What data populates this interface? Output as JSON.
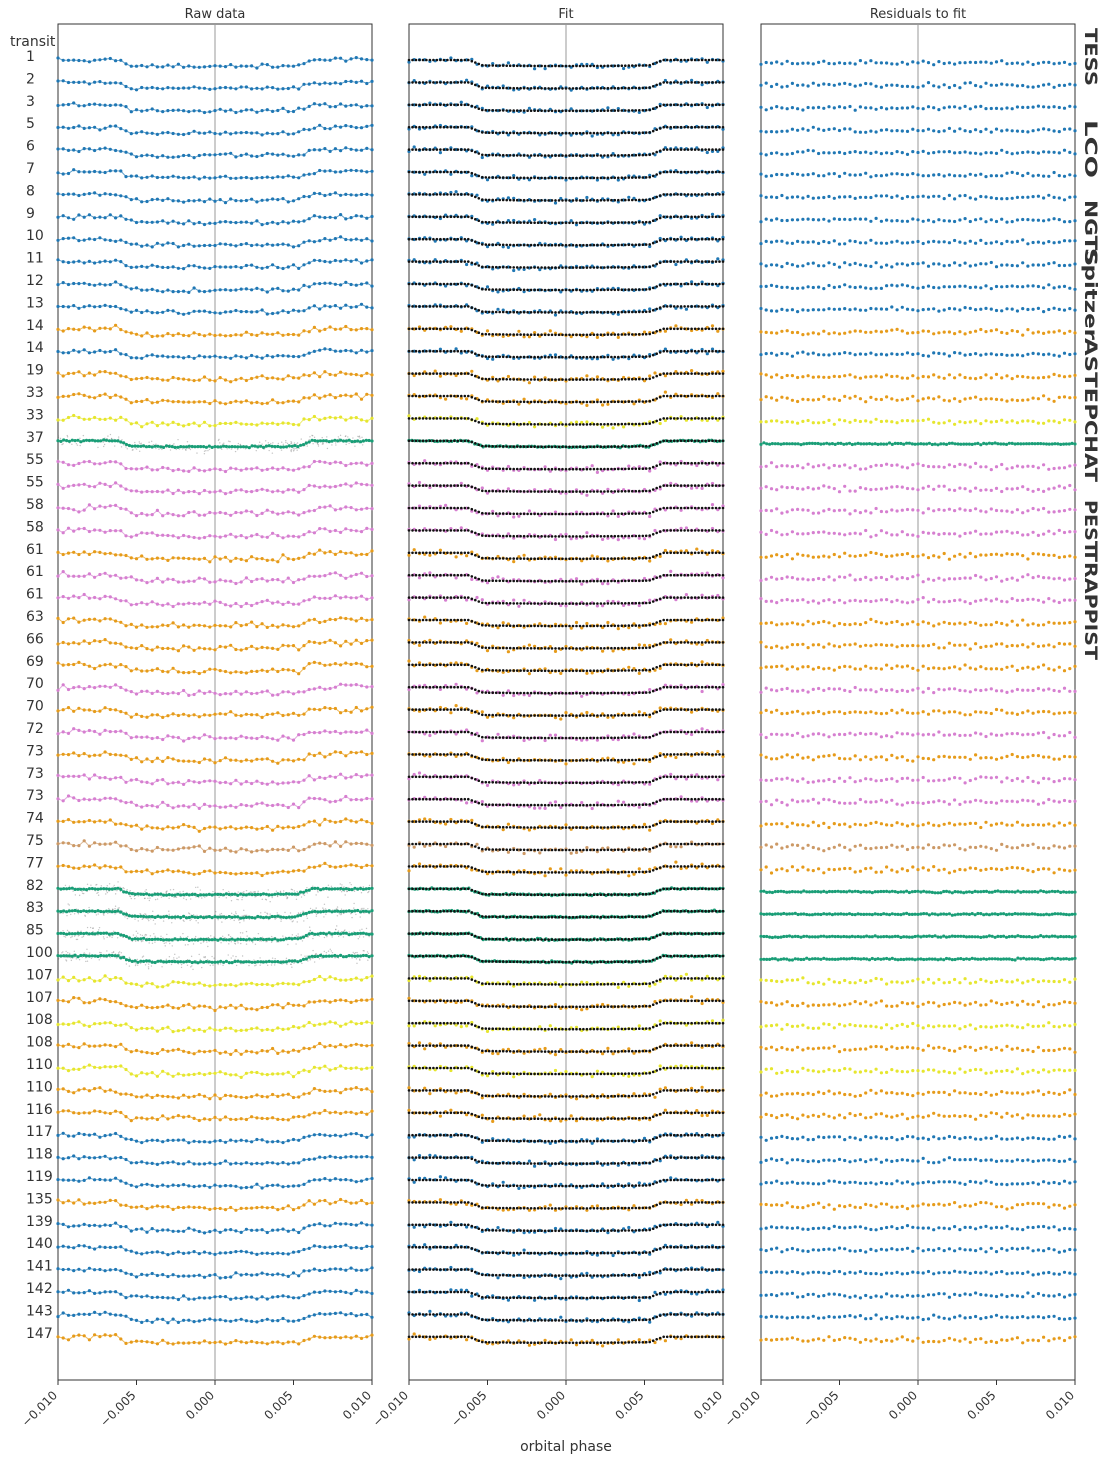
{
  "chart_data": {
    "type": "scatter",
    "panels": [
      {
        "title": "Raw data",
        "connected": true
      },
      {
        "title": "Fit",
        "connected": false
      },
      {
        "title": "Residuals to fit",
        "connected": false
      }
    ],
    "xlabel": "orbital phase",
    "xlim": [
      -0.01,
      0.01
    ],
    "xticks": [
      "-0.010",
      "-0.005",
      "0.000",
      "0.005",
      "0.010"
    ],
    "row_header": "transit",
    "rows": [
      {
        "transit": "1",
        "instrument": "TESS"
      },
      {
        "transit": "2",
        "instrument": "TESS"
      },
      {
        "transit": "3",
        "instrument": "TESS"
      },
      {
        "transit": "5",
        "instrument": "TESS"
      },
      {
        "transit": "6",
        "instrument": "TESS"
      },
      {
        "transit": "7",
        "instrument": "TESS"
      },
      {
        "transit": "8",
        "instrument": "TESS"
      },
      {
        "transit": "9",
        "instrument": "TESS"
      },
      {
        "transit": "10",
        "instrument": "TESS"
      },
      {
        "transit": "11",
        "instrument": "TESS"
      },
      {
        "transit": "12",
        "instrument": "TESS"
      },
      {
        "transit": "13",
        "instrument": "TESS"
      },
      {
        "transit": "14",
        "instrument": "LCO"
      },
      {
        "transit": "14",
        "instrument": "TESS"
      },
      {
        "transit": "19",
        "instrument": "LCO"
      },
      {
        "transit": "33",
        "instrument": "LCO"
      },
      {
        "transit": "33",
        "instrument": "ASTEP"
      },
      {
        "transit": "37",
        "instrument": "Spitzer"
      },
      {
        "transit": "55",
        "instrument": "TRAPPIST"
      },
      {
        "transit": "55",
        "instrument": "TRAPPIST"
      },
      {
        "transit": "58",
        "instrument": "TRAPPIST"
      },
      {
        "transit": "58",
        "instrument": "TRAPPIST"
      },
      {
        "transit": "61",
        "instrument": "LCO"
      },
      {
        "transit": "61",
        "instrument": "TRAPPIST"
      },
      {
        "transit": "61",
        "instrument": "TRAPPIST"
      },
      {
        "transit": "63",
        "instrument": "LCO"
      },
      {
        "transit": "66",
        "instrument": "LCO"
      },
      {
        "transit": "69",
        "instrument": "LCO"
      },
      {
        "transit": "70",
        "instrument": "TRAPPIST"
      },
      {
        "transit": "70",
        "instrument": "LCO"
      },
      {
        "transit": "72",
        "instrument": "TRAPPIST"
      },
      {
        "transit": "73",
        "instrument": "LCO"
      },
      {
        "transit": "73",
        "instrument": "TRAPPIST"
      },
      {
        "transit": "73",
        "instrument": "TRAPPIST"
      },
      {
        "transit": "74",
        "instrument": "LCO"
      },
      {
        "transit": "75",
        "instrument": "PEST"
      },
      {
        "transit": "77",
        "instrument": "LCO"
      },
      {
        "transit": "82",
        "instrument": "Spitzer"
      },
      {
        "transit": "83",
        "instrument": "Spitzer"
      },
      {
        "transit": "85",
        "instrument": "Spitzer"
      },
      {
        "transit": "100",
        "instrument": "Spitzer"
      },
      {
        "transit": "107",
        "instrument": "ASTEP"
      },
      {
        "transit": "107",
        "instrument": "LCO"
      },
      {
        "transit": "108",
        "instrument": "ASTEP"
      },
      {
        "transit": "108",
        "instrument": "LCO"
      },
      {
        "transit": "110",
        "instrument": "ASTEP"
      },
      {
        "transit": "110",
        "instrument": "LCO"
      },
      {
        "transit": "116",
        "instrument": "LCO"
      },
      {
        "transit": "117",
        "instrument": "TESS"
      },
      {
        "transit": "118",
        "instrument": "TESS"
      },
      {
        "transit": "119",
        "instrument": "TESS"
      },
      {
        "transit": "135",
        "instrument": "LCO"
      },
      {
        "transit": "139",
        "instrument": "TESS"
      },
      {
        "transit": "140",
        "instrument": "TESS"
      },
      {
        "transit": "141",
        "instrument": "TESS"
      },
      {
        "transit": "142",
        "instrument": "TESS"
      },
      {
        "transit": "143",
        "instrument": "TESS"
      },
      {
        "transit": "147",
        "instrument": "LCO"
      }
    ],
    "legend": [
      {
        "name": "TESS",
        "color": "#1f77b4"
      },
      {
        "name": "LCO",
        "color": "#e69b1a"
      },
      {
        "name": "NGTS",
        "color": "#999999"
      },
      {
        "name": "Spitzer",
        "color": "#1a9e77"
      },
      {
        "name": "ASTEP",
        "color": "#e6e62e"
      },
      {
        "name": "CHAT",
        "color": "#d95f0e"
      },
      {
        "name": "PEST",
        "color": "#cc9966"
      },
      {
        "name": "TRAPPIST",
        "color": "#d67fd0"
      }
    ],
    "transit_model": {
      "ingress_start": -0.0062,
      "full_start": -0.0052,
      "full_end": 0.0052,
      "egress_end": 0.0062
    },
    "grid": false,
    "legend_placement": "right, vertical"
  }
}
